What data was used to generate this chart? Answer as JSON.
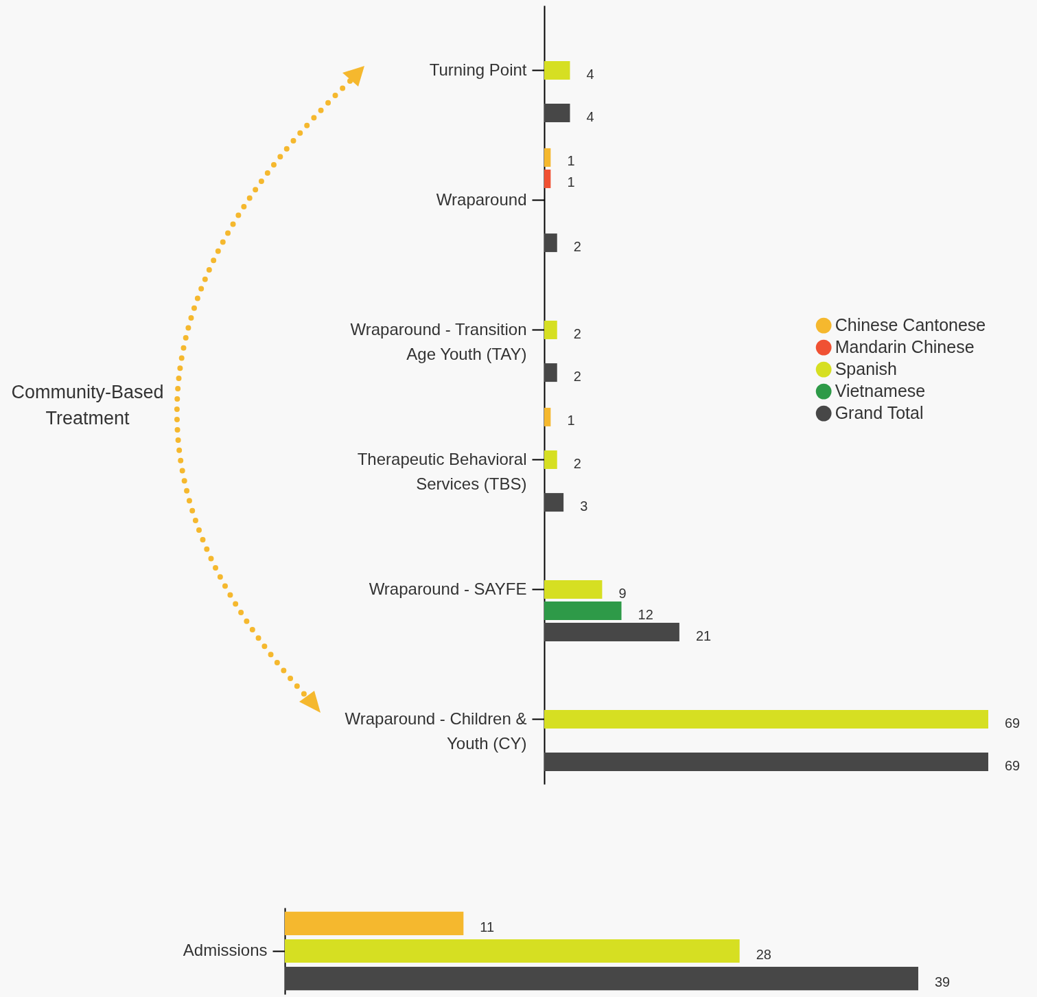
{
  "chart_data": [
    {
      "type": "bar",
      "orientation": "horizontal",
      "categories": [
        "Turning Point",
        "Wraparound",
        "Wraparound - Transition Age Youth (TAY)",
        "Therapeutic Behavioral Services (TBS)",
        "Wraparound - SAYFE",
        "Wraparound - Children & Youth (CY)"
      ],
      "series": [
        {
          "name": "Chinese Cantonese",
          "color": "#f5b82e",
          "values": [
            null,
            1,
            null,
            1,
            null,
            null
          ]
        },
        {
          "name": "Mandarin Chinese",
          "color": "#f05133",
          "values": [
            null,
            1,
            null,
            null,
            null,
            null
          ]
        },
        {
          "name": "Spanish",
          "color": "#d6df22",
          "values": [
            4,
            null,
            2,
            2,
            9,
            69
          ]
        },
        {
          "name": "Vietnamese",
          "color": "#2e9a48",
          "values": [
            null,
            null,
            null,
            null,
            12,
            null
          ]
        },
        {
          "name": "Grand Total",
          "color": "#474747",
          "values": [
            4,
            2,
            2,
            3,
            21,
            69
          ]
        }
      ],
      "data_labels": true,
      "legend": "right",
      "tick_labels": "y",
      "annotations": [
        "Community-Based Treatment"
      ]
    },
    {
      "type": "bar",
      "orientation": "horizontal",
      "categories": [
        "Admissions"
      ],
      "series": [
        {
          "color": "#f5b82e",
          "values": [
            11
          ]
        },
        {
          "color": "#d6df22",
          "values": [
            28
          ]
        },
        {
          "color": "#474747",
          "values": [
            39
          ]
        }
      ],
      "data_labels": true,
      "tick_labels": "y"
    }
  ]
}
